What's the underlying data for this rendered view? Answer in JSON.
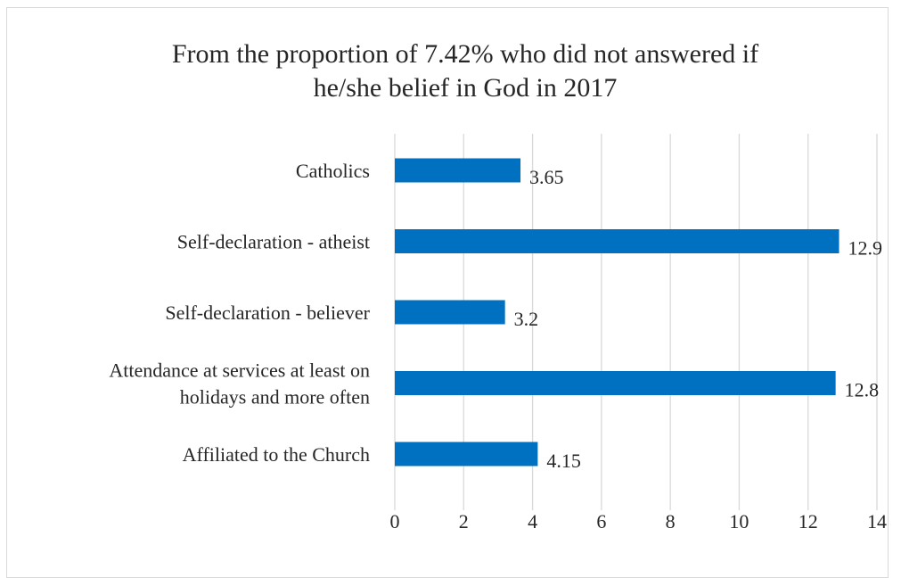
{
  "chart_data": {
    "type": "bar",
    "orientation": "horizontal",
    "title_lines": [
      "From the proportion of 7.42% who did not answered if",
      "he/she belief in God in 2017"
    ],
    "categories": [
      "Catholics",
      "Self-declaration - atheist",
      "Self-declaration - believer",
      "Attendance at services at least on holidays and more often",
      "Affiliated to the Church"
    ],
    "category_label_lines": [
      [
        "Catholics"
      ],
      [
        "Self-declaration - atheist"
      ],
      [
        "Self-declaration - believer"
      ],
      [
        "Attendance at services at least on",
        "holidays and more often"
      ],
      [
        "Affiliated to the Church"
      ]
    ],
    "values": [
      3.65,
      12.9,
      3.2,
      12.8,
      4.15
    ],
    "data_labels": [
      "3.65",
      "12.9",
      "3.2",
      "12.8",
      "4.15"
    ],
    "xlim": [
      0,
      14
    ],
    "x_ticks": [
      0,
      2,
      4,
      6,
      8,
      10,
      12,
      14
    ],
    "x_tick_labels": [
      "0",
      "2",
      "4",
      "6",
      "8",
      "10",
      "12",
      "14"
    ],
    "xlabel": "",
    "ylabel": "",
    "grid": "vertical",
    "legend": "none",
    "colors": {
      "bar": "#0070c0",
      "grid": "#d9d9d9",
      "text": "#262626"
    }
  }
}
